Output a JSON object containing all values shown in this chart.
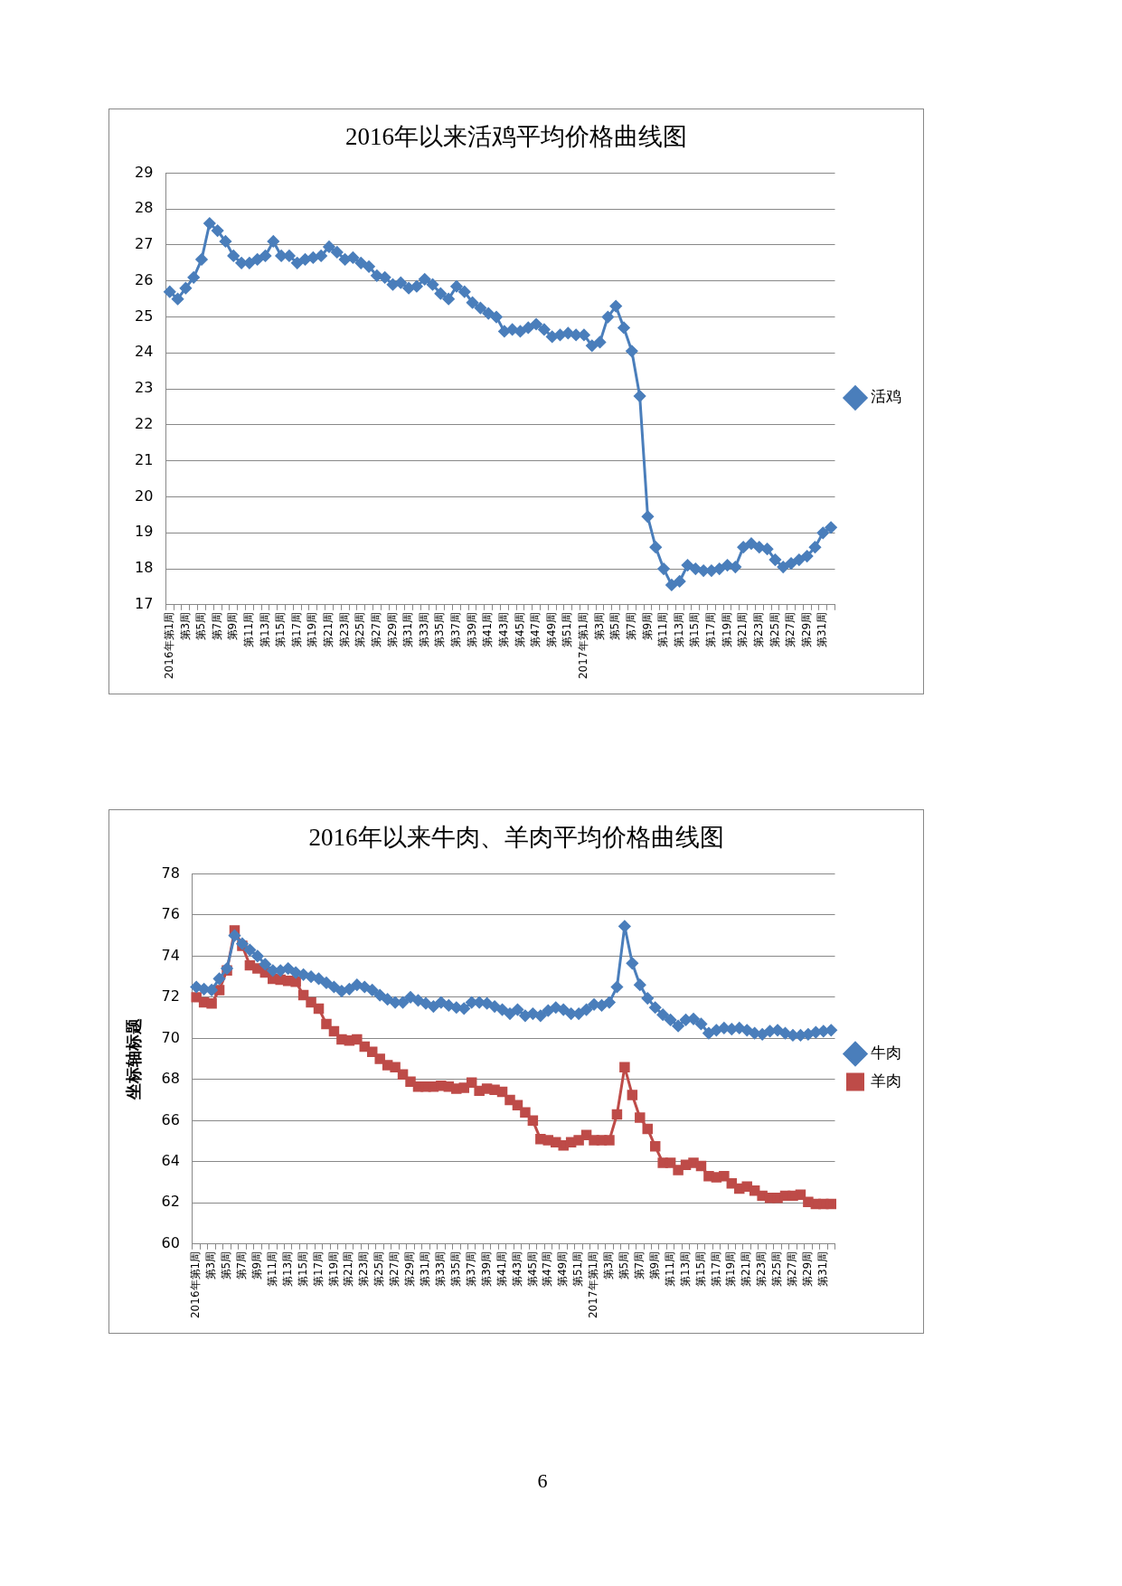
{
  "chart_data": [
    {
      "type": "line",
      "title": "2016年以来活鸡平均价格曲线图",
      "categories": [
        "2016年第1周",
        null,
        "第3周",
        null,
        "第5周",
        null,
        "第7周",
        null,
        "第9周",
        null,
        "第11周",
        null,
        "第13周",
        null,
        "第15周",
        null,
        "第17周",
        null,
        "第19周",
        null,
        "第21周",
        null,
        "第23周",
        null,
        "第25周",
        null,
        "第27周",
        null,
        "第29周",
        null,
        "第31周",
        null,
        "第33周",
        null,
        "第35周",
        null,
        "第37周",
        null,
        "第39周",
        null,
        "第41周",
        null,
        "第43周",
        null,
        "第45周",
        null,
        "第47周",
        null,
        "第49周",
        null,
        "第51周",
        null,
        "2017年第1周",
        null,
        "第3周",
        null,
        "第5周",
        null,
        "第7周",
        null,
        "第9周",
        null,
        "第11周",
        null,
        "第13周",
        null,
        "第15周",
        null,
        "第17周",
        null,
        "第19周",
        null,
        "第21周",
        null,
        "第23周",
        null,
        "第25周",
        null,
        "第27周",
        null,
        "第29周",
        null,
        "第31周",
        null
      ],
      "series": [
        {
          "name": "活鸡",
          "color": "#4a7ebb",
          "marker": "diamond",
          "values": [
            25.7,
            25.5,
            25.8,
            26.1,
            26.6,
            27.6,
            27.4,
            27.1,
            26.7,
            26.5,
            26.5,
            26.6,
            26.7,
            27.1,
            26.7,
            26.7,
            26.5,
            26.6,
            26.65,
            26.7,
            26.95,
            26.8,
            26.6,
            26.65,
            26.5,
            26.4,
            26.15,
            26.1,
            25.9,
            25.95,
            25.8,
            25.85,
            26.05,
            25.9,
            25.65,
            25.5,
            25.85,
            25.7,
            25.4,
            25.25,
            25.1,
            25.0,
            24.6,
            24.65,
            24.6,
            24.7,
            24.8,
            24.65,
            24.45,
            24.5,
            24.55,
            24.5,
            24.5,
            24.2,
            24.3,
            25.0,
            25.3,
            24.7,
            24.05,
            22.8,
            19.45,
            18.6,
            18.0,
            17.55,
            17.65,
            18.1,
            18.0,
            17.95,
            17.95,
            18.0,
            18.1,
            18.05,
            18.6,
            18.7,
            18.6,
            18.55,
            18.25,
            18.05,
            18.15,
            18.25,
            18.35,
            18.6,
            19.0,
            19.15
          ]
        }
      ],
      "ylim": [
        17,
        29
      ],
      "yticks": [
        17,
        18,
        19,
        20,
        21,
        22,
        23,
        24,
        25,
        26,
        27,
        28,
        29
      ],
      "grid": "y",
      "legend": "right"
    },
    {
      "type": "line",
      "title": "2016年以来牛肉、羊肉平均价格曲线图",
      "ylabel": "坐标轴标题",
      "categories": [
        "2016年第1周",
        null,
        "第3周",
        null,
        "第5周",
        null,
        "第7周",
        null,
        "第9周",
        null,
        "第11周",
        null,
        "第13周",
        null,
        "第15周",
        null,
        "第17周",
        null,
        "第19周",
        null,
        "第21周",
        null,
        "第23周",
        null,
        "第25周",
        null,
        "第27周",
        null,
        "第29周",
        null,
        "第31周",
        null,
        "第33周",
        null,
        "第35周",
        null,
        "第37周",
        null,
        "第39周",
        null,
        "第41周",
        null,
        "第43周",
        null,
        "第45周",
        null,
        "第47周",
        null,
        "第49周",
        null,
        "第51周",
        null,
        "2017年第1周",
        null,
        "第3周",
        null,
        "第5周",
        null,
        "第7周",
        null,
        "第9周",
        null,
        "第11周",
        null,
        "第13周",
        null,
        "第15周",
        null,
        "第17周",
        null,
        "第19周",
        null,
        "第21周",
        null,
        "第23周",
        null,
        "第25周",
        null,
        "第27周",
        null,
        "第29周",
        null,
        "第31周",
        null
      ],
      "series": [
        {
          "name": "牛肉",
          "color": "#4a7ebb",
          "marker": "diamond",
          "values": [
            72.5,
            72.4,
            72.35,
            72.9,
            73.4,
            75.0,
            74.6,
            74.3,
            74.0,
            73.6,
            73.3,
            73.3,
            73.4,
            73.2,
            73.1,
            73.0,
            72.9,
            72.7,
            72.5,
            72.3,
            72.4,
            72.6,
            72.5,
            72.35,
            72.1,
            71.9,
            71.75,
            71.75,
            72.0,
            71.85,
            71.7,
            71.55,
            71.75,
            71.6,
            71.5,
            71.45,
            71.75,
            71.75,
            71.7,
            71.55,
            71.4,
            71.2,
            71.4,
            71.1,
            71.2,
            71.1,
            71.35,
            71.5,
            71.4,
            71.2,
            71.2,
            71.4,
            71.65,
            71.6,
            71.75,
            72.5,
            75.45,
            73.65,
            72.6,
            71.95,
            71.5,
            71.15,
            70.9,
            70.6,
            70.9,
            70.95,
            70.7,
            70.25,
            70.4,
            70.5,
            70.45,
            70.5,
            70.4,
            70.25,
            70.2,
            70.35,
            70.4,
            70.25,
            70.15,
            70.15,
            70.2,
            70.3,
            70.35,
            70.4
          ]
        },
        {
          "name": "羊肉",
          "color": "#be4b48",
          "marker": "square",
          "values": [
            72.0,
            71.75,
            71.7,
            72.35,
            73.3,
            75.25,
            74.5,
            73.55,
            73.4,
            73.2,
            72.9,
            72.85,
            72.8,
            72.75,
            72.1,
            71.75,
            71.45,
            70.7,
            70.35,
            69.95,
            69.9,
            69.95,
            69.6,
            69.35,
            69.0,
            68.7,
            68.6,
            68.25,
            67.9,
            67.65,
            67.65,
            67.65,
            67.7,
            67.65,
            67.55,
            67.6,
            67.85,
            67.45,
            67.55,
            67.5,
            67.4,
            67.0,
            66.75,
            66.4,
            66.0,
            65.1,
            65.05,
            64.95,
            64.8,
            64.95,
            65.05,
            65.3,
            65.05,
            65.05,
            65.05,
            66.3,
            68.6,
            67.25,
            66.15,
            65.6,
            64.75,
            63.95,
            63.95,
            63.6,
            63.85,
            63.95,
            63.8,
            63.3,
            63.25,
            63.3,
            62.95,
            62.7,
            62.8,
            62.6,
            62.35,
            62.25,
            62.25,
            62.35,
            62.35,
            62.4,
            62.05,
            61.95,
            61.95,
            61.95
          ]
        }
      ],
      "ylim": [
        60,
        78
      ],
      "yticks": [
        60,
        62,
        64,
        66,
        68,
        70,
        72,
        74,
        76,
        78
      ],
      "grid": "y",
      "legend": "right",
      "annotations": [
        "6"
      ]
    }
  ]
}
